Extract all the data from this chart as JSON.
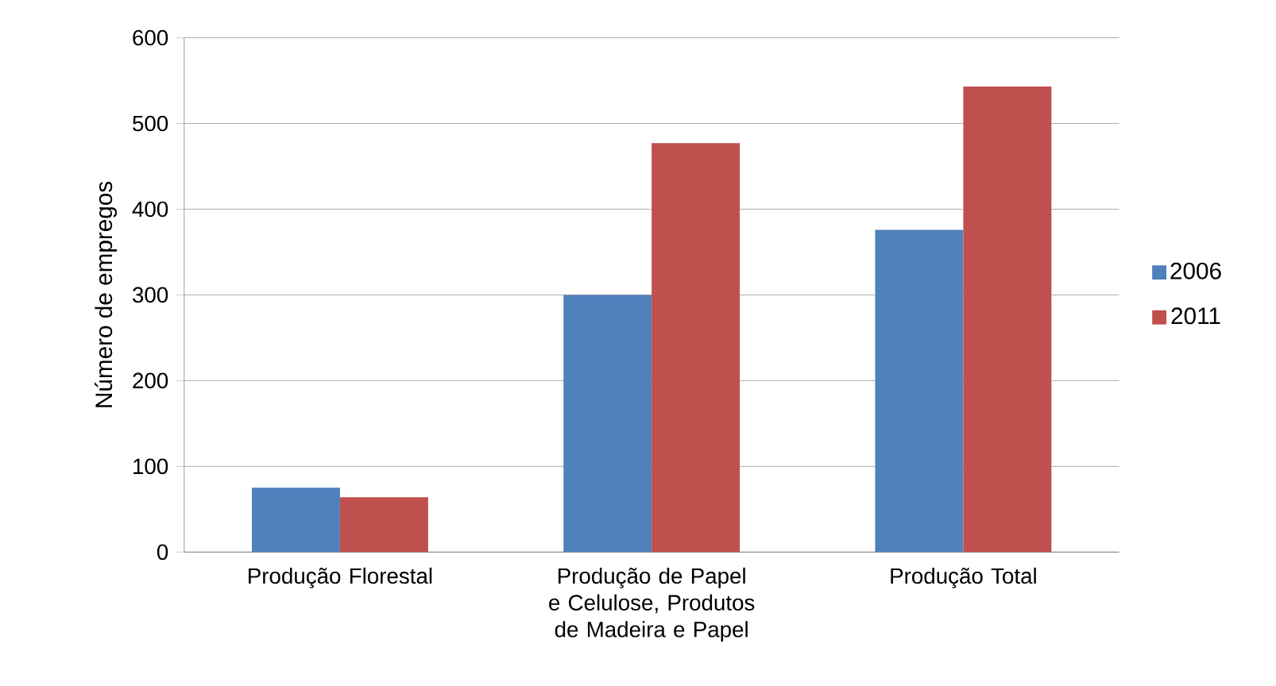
{
  "chart_data": {
    "type": "bar",
    "ylabel": "Número de empregos",
    "categories": [
      "Produção Florestal",
      "Produção de Papel e Celulose, Produtos de Madeira e Papel",
      "Produção Total"
    ],
    "series": [
      {
        "name": "2006",
        "color": "#4f81bd",
        "values": [
          75,
          300,
          376
        ]
      },
      {
        "name": "2011",
        "color": "#c0504d",
        "values": [
          64,
          477,
          543
        ]
      }
    ],
    "ylim": [
      0,
      600
    ],
    "yticks": [
      0,
      100,
      200,
      300,
      400,
      500,
      600
    ],
    "grid": "y",
    "legend": "right"
  }
}
